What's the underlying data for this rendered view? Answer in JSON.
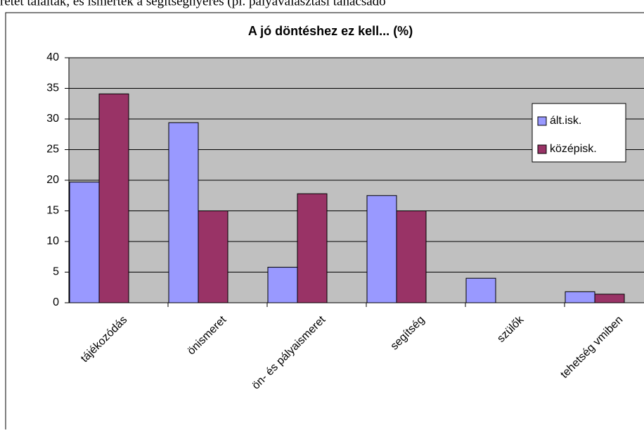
{
  "caption": "retet találtak, és ismerték a segítségnyerés (pl. pályaválasztási tanácsadó",
  "chart_data": {
    "type": "bar",
    "title": "A jó döntéshez ez kell... (%)",
    "categories": [
      "tájékozódás",
      "önismeret",
      "ön- és pályaismeret",
      "segítség",
      "szülők",
      "tehetség vmiben"
    ],
    "series": [
      {
        "name": "ált.isk.",
        "color": "#9999ff",
        "values": [
          19.7,
          29.4,
          5.8,
          17.5,
          4,
          1.8
        ]
      },
      {
        "name": "középisk.",
        "color": "#993366",
        "values": [
          34.1,
          15,
          17.8,
          15,
          0,
          1.4
        ]
      }
    ],
    "ylim": [
      0,
      40
    ],
    "yticks": [
      0,
      5,
      10,
      15,
      20,
      25,
      30,
      35,
      40
    ],
    "grid": true,
    "legend": "right",
    "background": "#c0c0c0"
  }
}
